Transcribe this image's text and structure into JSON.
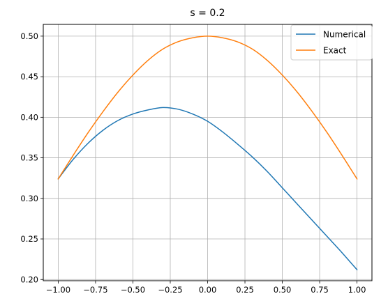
{
  "chart_data": {
    "type": "line",
    "title": "s = 0.2",
    "xlabel": "",
    "ylabel": "",
    "xlim": [
      -1.1,
      1.1
    ],
    "ylim": [
      0.1985,
      0.5145
    ],
    "x_ticks": [
      -1.0,
      -0.75,
      -0.5,
      -0.25,
      0.0,
      0.25,
      0.5,
      0.75,
      1.0
    ],
    "x_tick_labels": [
      "−1.00",
      "−0.75",
      "−0.50",
      "−0.25",
      "0.00",
      "0.25",
      "0.50",
      "0.75",
      "1.00"
    ],
    "y_ticks": [
      0.2,
      0.25,
      0.3,
      0.35,
      0.4,
      0.45,
      0.5
    ],
    "y_tick_labels": [
      "0.20",
      "0.25",
      "0.30",
      "0.35",
      "0.40",
      "0.45",
      "0.50"
    ],
    "grid": true,
    "legend_position": "top-right",
    "series": [
      {
        "name": "Numerical",
        "color": "#1f77b4",
        "x": [
          -1.0,
          -0.9,
          -0.8,
          -0.7,
          -0.6,
          -0.5,
          -0.4,
          -0.3,
          -0.2,
          -0.1,
          0.0,
          0.1,
          0.2,
          0.3,
          0.4,
          0.5,
          0.6,
          0.7,
          0.8,
          0.9,
          1.0
        ],
        "y": [
          0.324,
          0.348,
          0.368,
          0.384,
          0.396,
          0.404,
          0.409,
          0.412,
          0.41,
          0.404,
          0.395,
          0.382,
          0.367,
          0.351,
          0.333,
          0.313,
          0.293,
          0.273,
          0.253,
          0.233,
          0.212
        ]
      },
      {
        "name": "Exact",
        "color": "#ff7f0e",
        "x": [
          -1.0,
          -0.9,
          -0.8,
          -0.7,
          -0.6,
          -0.5,
          -0.4,
          -0.3,
          -0.2,
          -0.1,
          0.0,
          0.1,
          0.2,
          0.3,
          0.4,
          0.5,
          0.6,
          0.7,
          0.8,
          0.9,
          1.0
        ],
        "y": [
          0.324,
          0.353,
          0.381,
          0.407,
          0.431,
          0.452,
          0.47,
          0.484,
          0.493,
          0.498,
          0.5,
          0.498,
          0.493,
          0.484,
          0.47,
          0.452,
          0.431,
          0.407,
          0.381,
          0.353,
          0.324
        ]
      }
    ]
  }
}
